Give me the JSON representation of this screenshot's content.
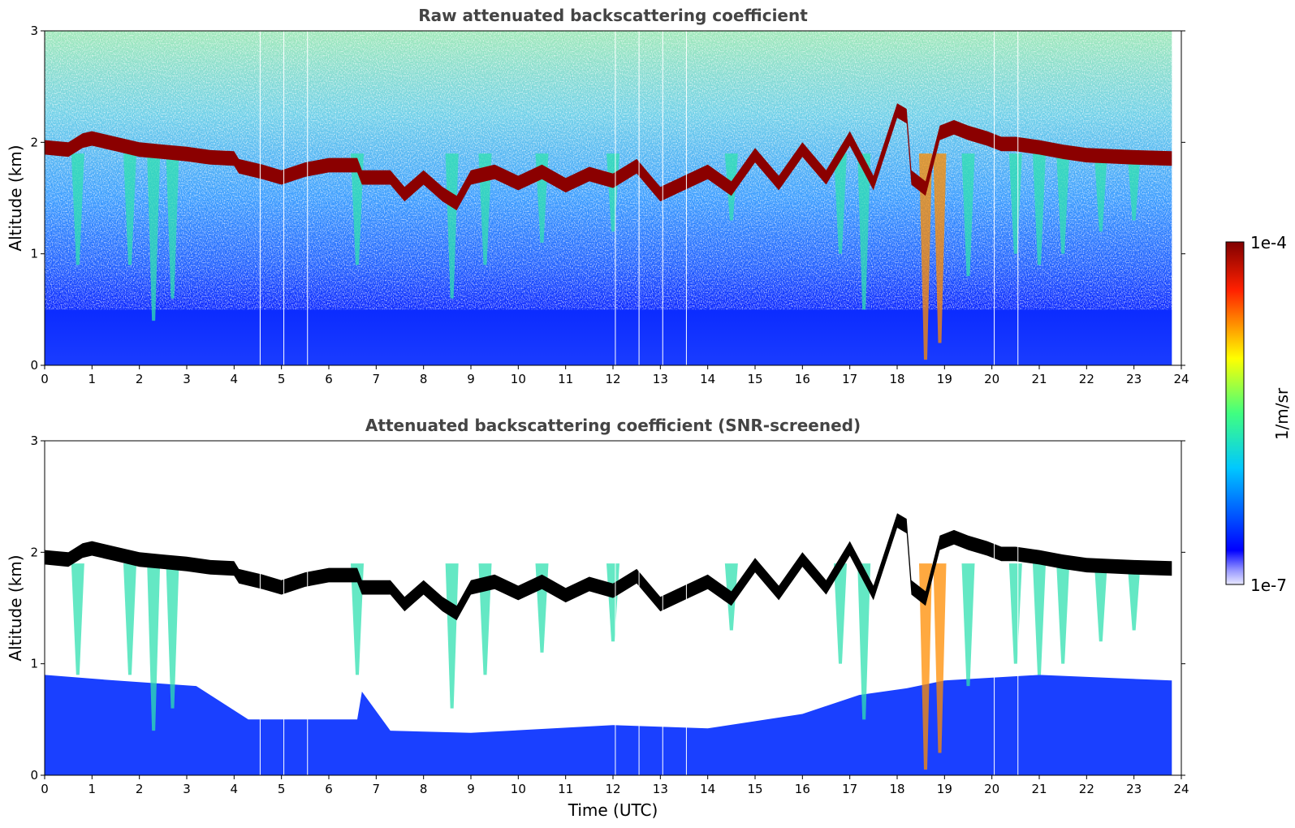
{
  "chart_data": [
    {
      "type": "heatmap",
      "title": "Raw attenuated backscattering coefficient",
      "xlabel": "",
      "ylabel": "Altitude (km)",
      "xlim": [
        0,
        24
      ],
      "ylim": [
        0,
        3
      ],
      "xticks": [
        "0",
        "1",
        "2",
        "3",
        "4",
        "5",
        "6",
        "7",
        "8",
        "9",
        "10",
        "11",
        "12",
        "13",
        "14",
        "15",
        "16",
        "17",
        "18",
        "19",
        "20",
        "21",
        "22",
        "23",
        "24"
      ],
      "yticks": [
        "0",
        "1",
        "2",
        "3"
      ],
      "screened": false
    },
    {
      "type": "heatmap",
      "title": "Attenuated backscattering coefficient (SNR-screened)",
      "xlabel": "Time (UTC)",
      "ylabel": "Altitude (km)",
      "xlim": [
        0,
        24
      ],
      "ylim": [
        0,
        3
      ],
      "xticks": [
        "0",
        "1",
        "2",
        "3",
        "4",
        "5",
        "6",
        "7",
        "8",
        "9",
        "10",
        "11",
        "12",
        "13",
        "14",
        "15",
        "16",
        "17",
        "18",
        "19",
        "20",
        "21",
        "22",
        "23",
        "24"
      ],
      "yticks": [
        "0",
        "1",
        "2",
        "3"
      ],
      "screened": true
    }
  ],
  "colorbar": {
    "label": "1/m/sr",
    "max_label": "1e-4",
    "min_label": "1e-7",
    "colormap": "jet",
    "scale": "log"
  },
  "cloud_top_km": [
    [
      0,
      2.02
    ],
    [
      0.5,
      2.0
    ],
    [
      0.8,
      2.08
    ],
    [
      1.0,
      2.1
    ],
    [
      1.5,
      2.05
    ],
    [
      2.0,
      2.0
    ],
    [
      2.5,
      1.98
    ],
    [
      3.0,
      1.96
    ],
    [
      3.5,
      1.93
    ],
    [
      4.0,
      1.92
    ],
    [
      4.1,
      1.85
    ],
    [
      4.6,
      1.8
    ],
    [
      5.0,
      1.75
    ],
    [
      5.5,
      1.82
    ],
    [
      6.0,
      1.86
    ],
    [
      6.6,
      1.86
    ],
    [
      6.7,
      1.75
    ],
    [
      7.3,
      1.75
    ],
    [
      7.6,
      1.6
    ],
    [
      8.0,
      1.75
    ],
    [
      8.4,
      1.6
    ],
    [
      8.7,
      1.52
    ],
    [
      9.0,
      1.75
    ],
    [
      9.5,
      1.8
    ],
    [
      10.0,
      1.7
    ],
    [
      10.5,
      1.8
    ],
    [
      11.0,
      1.68
    ],
    [
      11.5,
      1.78
    ],
    [
      12.0,
      1.72
    ],
    [
      12.5,
      1.85
    ],
    [
      13.0,
      1.6
    ],
    [
      13.5,
      1.7
    ],
    [
      14.0,
      1.8
    ],
    [
      14.5,
      1.65
    ],
    [
      15.0,
      1.95
    ],
    [
      15.5,
      1.7
    ],
    [
      16.0,
      2.0
    ],
    [
      16.5,
      1.75
    ],
    [
      17.0,
      2.1
    ],
    [
      17.5,
      1.7
    ],
    [
      18.0,
      2.35
    ],
    [
      18.2,
      2.3
    ],
    [
      18.3,
      1.75
    ],
    [
      18.6,
      1.65
    ],
    [
      18.9,
      2.15
    ],
    [
      19.2,
      2.2
    ],
    [
      19.5,
      2.15
    ],
    [
      19.9,
      2.1
    ],
    [
      20.2,
      2.05
    ],
    [
      20.5,
      2.05
    ],
    [
      21.0,
      2.02
    ],
    [
      21.5,
      1.98
    ],
    [
      22.0,
      1.95
    ],
    [
      22.5,
      1.94
    ],
    [
      23.0,
      1.93
    ],
    [
      23.8,
      1.92
    ]
  ]
}
